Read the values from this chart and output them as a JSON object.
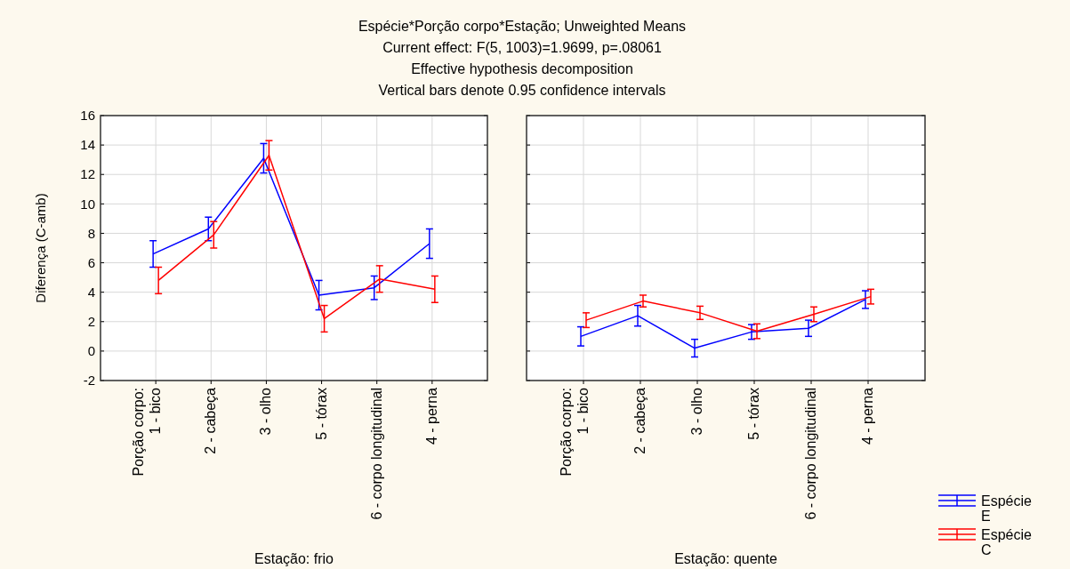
{
  "chart_data": [
    {
      "type": "line",
      "title": "Espécie*Porção corpo*Estação; Unweighted Means",
      "subtitle": "Current effect: F(5, 1003)=1.9699, p=.08061",
      "annotations": [
        "Effective hypothesis decomposition",
        "Vertical bars denote 0.95 confidence intervals"
      ],
      "ylabel": "Diferença (C-amb)",
      "xlabel": "Estação: frio",
      "categories": [
        "Porção corpo:\n1 - bico",
        "2 - cabeça",
        "3 - olho",
        "5 - tórax",
        "6 - corpo longitudinal",
        "4 - perna"
      ],
      "ylim": [
        -2,
        16
      ],
      "yticks": [
        -2,
        0,
        2,
        4,
        6,
        8,
        10,
        12,
        14,
        16
      ],
      "grid": true,
      "marker": "none",
      "series": [
        {
          "color": "#0000ff",
          "values": [
            6.6,
            8.3,
            13.1,
            3.8,
            4.3,
            7.3
          ],
          "errors": [
            0.9,
            0.8,
            1.0,
            1.0,
            0.8,
            1.0
          ]
        },
        {
          "color": "#ff0000",
          "values": [
            4.8,
            7.9,
            13.3,
            2.2,
            4.9,
            4.2
          ],
          "errors": [
            0.9,
            0.9,
            1.0,
            0.9,
            0.9,
            0.9
          ]
        }
      ]
    },
    {
      "type": "line",
      "xlabel": "Estação: quente",
      "categories": [
        "Porção corpo:\n1 - bico",
        "2 - cabeça",
        "3 - olho",
        "5 - tórax",
        "6 - corpo longitudinal",
        "4 - perna"
      ],
      "ylim": [
        -2,
        16
      ],
      "yticks": [
        -2,
        0,
        2,
        4,
        6,
        8,
        10,
        12,
        14,
        16
      ],
      "tick_labels": "x",
      "grid": true,
      "marker": "none",
      "legend": "bottom right",
      "series": [
        {
          "name": "Espécie E",
          "color": "#0000ff",
          "values": [
            1.0,
            2.4,
            0.2,
            1.3,
            1.55,
            3.5
          ],
          "errors": [
            0.65,
            0.7,
            0.6,
            0.5,
            0.55,
            0.6
          ]
        },
        {
          "name": "Espécie C",
          "color": "#ff0000",
          "values": [
            2.1,
            3.4,
            2.6,
            1.35,
            2.5,
            3.7
          ],
          "errors": [
            0.5,
            0.4,
            0.45,
            0.5,
            0.5,
            0.5
          ]
        }
      ]
    }
  ]
}
